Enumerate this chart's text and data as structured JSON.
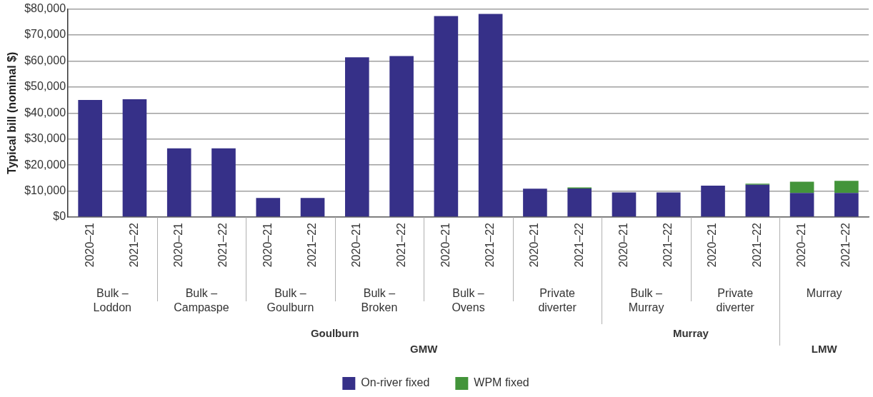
{
  "chart_data": {
    "type": "bar",
    "stacked": true,
    "ylabel": "Typical bill (nominal $)",
    "categories": [
      "2020–21",
      "2021–22",
      "2020–21",
      "2021–22",
      "2020–21",
      "2021–22",
      "2020–21",
      "2021–22",
      "2020–21",
      "2021–22",
      "2020–21",
      "2021–22",
      "2020–21",
      "2021–22",
      "2020–21",
      "2021–22",
      "2020–21",
      "2021–22"
    ],
    "series": [
      {
        "name": "On-river fixed",
        "color": "#363088",
        "values": [
          45000,
          45300,
          26450,
          26450,
          7350,
          7350,
          61400,
          61900,
          77300,
          78100,
          10900,
          11000,
          9500,
          9500,
          12100,
          12400,
          9250,
          9250
        ]
      },
      {
        "name": "WPM fixed",
        "color": "#43943a",
        "values": [
          0,
          0,
          0,
          0,
          0,
          0,
          0,
          0,
          0,
          0,
          0,
          400,
          0,
          0,
          0,
          450,
          4350,
          4650
        ]
      }
    ],
    "ylim": [
      0,
      80000
    ],
    "yticks": [
      {
        "value": 0,
        "label": "$0"
      },
      {
        "value": 10000,
        "label": "$10,000"
      },
      {
        "value": 20000,
        "label": "$20,000"
      },
      {
        "value": 30000,
        "label": "$30,000"
      },
      {
        "value": 40000,
        "label": "$40,000"
      },
      {
        "value": 50000,
        "label": "$50,000"
      },
      {
        "value": 60000,
        "label": "$60,000"
      },
      {
        "value": 70000,
        "label": "$70,000"
      },
      {
        "value": 80000,
        "label": "$80,000"
      }
    ],
    "grid": "y",
    "legend": "bottom",
    "annotations": [
      "Bulk – Loddon",
      "Bulk – Campaspe",
      "Bulk – Goulburn",
      "Bulk – Broken",
      "Bulk – Ovens",
      "Private diverter",
      "Bulk – Murray",
      "Private diverter",
      "Murray",
      "Goulburn",
      "Murray",
      "GMW",
      "LMW"
    ]
  }
}
